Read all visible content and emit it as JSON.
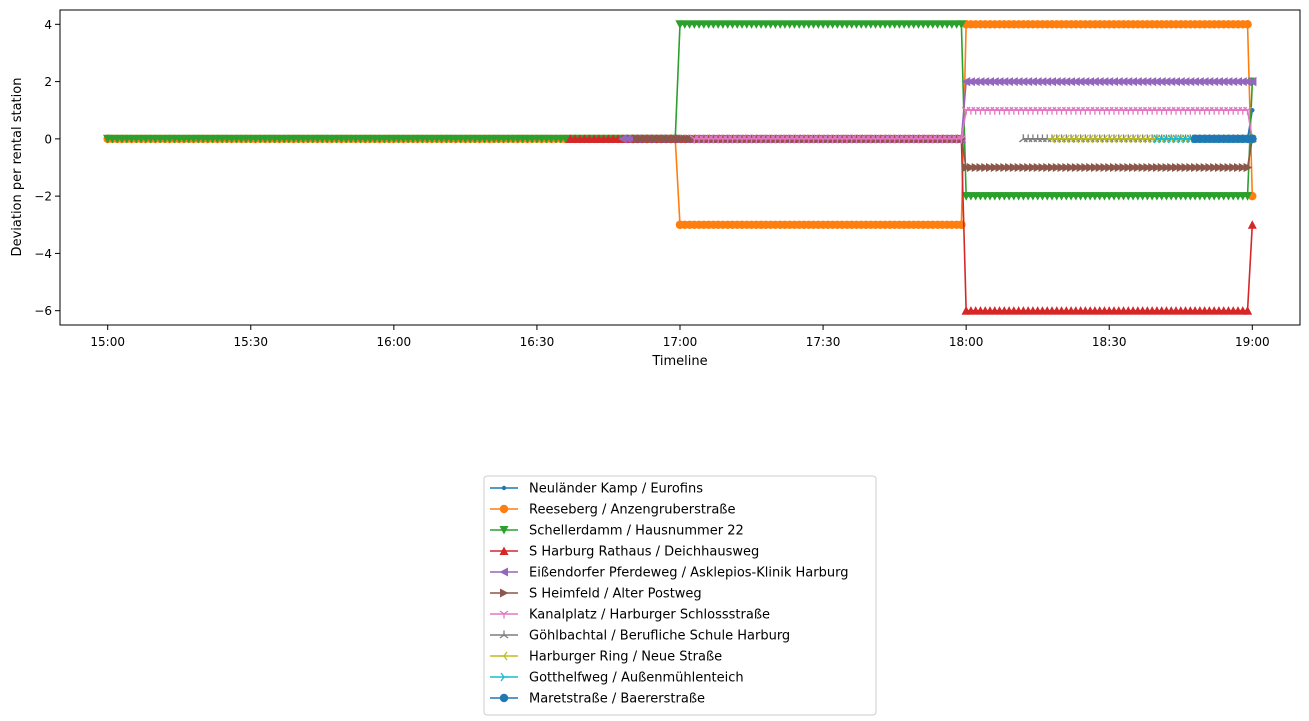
{
  "chart_data": {
    "type": "line",
    "xlabel": "Timeline",
    "ylabel": "Deviation per rental station",
    "x_unit": "time",
    "xlim": [
      "14:50",
      "19:10"
    ],
    "ylim": [
      -6.5,
      4.5
    ],
    "x_ticks": [
      "15:00",
      "15:30",
      "16:00",
      "16:30",
      "17:00",
      "17:30",
      "18:00",
      "18:30",
      "19:00"
    ],
    "y_ticks": [
      4,
      2,
      0,
      -2,
      -4,
      -6
    ],
    "y_tick_labels": [
      "4",
      "2",
      "0",
      "−2",
      "−4",
      "−6"
    ],
    "legend_position": "bottom-center",
    "series": [
      {
        "name": "Neuländer Kamp / Eurofins",
        "color": "#1f77b4",
        "marker": "point",
        "points": [
          [
            "18:59",
            0
          ],
          [
            "19:00",
            1
          ]
        ]
      },
      {
        "name": "Reeseberg / Anzengruberstraße",
        "color": "#ff7f0e",
        "marker": "circle",
        "points": [
          [
            "15:00",
            0
          ],
          [
            "16:59",
            0
          ],
          [
            "17:00",
            -3
          ],
          [
            "17:59",
            -3
          ],
          [
            "18:00",
            4
          ],
          [
            "18:59",
            4
          ],
          [
            "19:00",
            -2
          ]
        ]
      },
      {
        "name": "Schellerdamm / Hausnummer 22",
        "color": "#2ca02c",
        "marker": "triangle_down",
        "points": [
          [
            "15:00",
            0
          ],
          [
            "16:59",
            0
          ],
          [
            "17:00",
            4
          ],
          [
            "17:59",
            4
          ],
          [
            "18:00",
            -2
          ],
          [
            "18:59",
            -2
          ],
          [
            "19:00",
            2
          ]
        ]
      },
      {
        "name": "S Harburg Rathaus / Deichhausweg",
        "color": "#d62728",
        "marker": "triangle_up",
        "points": [
          [
            "16:37",
            0
          ],
          [
            "17:59",
            0
          ],
          [
            "18:00",
            -6
          ],
          [
            "18:59",
            -6
          ],
          [
            "19:00",
            -3
          ]
        ]
      },
      {
        "name": "Eißendorfer Pferdeweg / Asklepios-Klinik Harburg",
        "color": "#9467bd",
        "marker": "triangle_left",
        "points": [
          [
            "16:48",
            0
          ],
          [
            "17:59",
            0
          ],
          [
            "18:00",
            2
          ],
          [
            "18:59",
            2
          ],
          [
            "19:00",
            2
          ]
        ]
      },
      {
        "name": "S Heimfeld / Alter Postweg",
        "color": "#8c564b",
        "marker": "triangle_right",
        "points": [
          [
            "16:51",
            0
          ],
          [
            "17:59",
            0
          ],
          [
            "18:00",
            -1
          ],
          [
            "18:59",
            -1
          ],
          [
            "19:00",
            0
          ]
        ]
      },
      {
        "name": "Kanalplatz / Harburger Schlossstraße",
        "color": "#e377c2",
        "marker": "tri_down",
        "points": [
          [
            "17:03",
            0
          ],
          [
            "17:59",
            0
          ],
          [
            "18:00",
            1
          ],
          [
            "18:59",
            1
          ],
          [
            "19:00",
            0
          ]
        ]
      },
      {
        "name": "Göhlbachtal / Berufliche Schule Harburg",
        "color": "#7f7f7f",
        "marker": "tri_up",
        "points": [
          [
            "18:12",
            0
          ],
          [
            "19:00",
            0
          ]
        ]
      },
      {
        "name": "Harburger Ring / Neue Straße",
        "color": "#bcbd22",
        "marker": "tri_left",
        "points": [
          [
            "18:18",
            0
          ],
          [
            "19:00",
            0
          ]
        ]
      },
      {
        "name": "Gotthelfweg / Außenmühlenteich",
        "color": "#17becf",
        "marker": "tri_right",
        "points": [
          [
            "18:40",
            0
          ],
          [
            "19:00",
            0
          ]
        ]
      },
      {
        "name": "Maretstraße / Baererstraße",
        "color": "#1f77b4",
        "marker": "circle",
        "points": [
          [
            "18:48",
            0
          ],
          [
            "19:00",
            0
          ]
        ]
      }
    ]
  }
}
